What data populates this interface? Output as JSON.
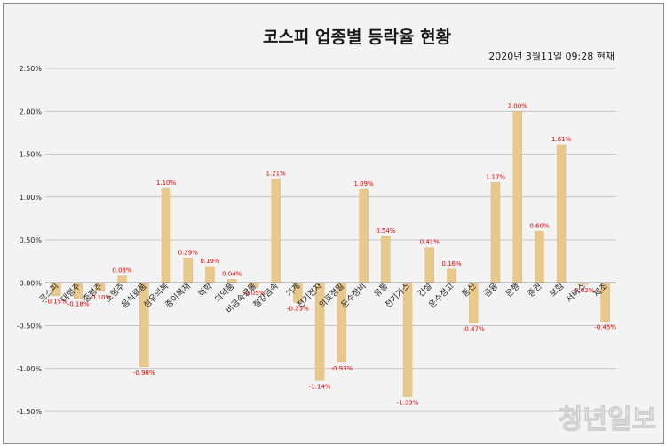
{
  "chart_data": {
    "type": "bar",
    "title": "코스피 업종별 등락율 현황",
    "subtitle": "2020년 3월11일  09:28  현재",
    "xlabel": "",
    "ylabel": "",
    "ylim": [
      -1.5,
      2.5
    ],
    "y_ticks": [
      "2.50%",
      "2.00%",
      "1.50%",
      "1.00%",
      "0.50%",
      "0.00%",
      "-0.50%",
      "-1.00%",
      "-1.50%"
    ],
    "y_tick_values": [
      2.5,
      2.0,
      1.5,
      1.0,
      0.5,
      0.0,
      -0.5,
      -1.0,
      -1.5
    ],
    "grid": true,
    "categories": [
      "코스피",
      "대형주",
      "중형주",
      "소형주",
      "음식료품",
      "섬유의복",
      "종이목재",
      "화학",
      "의약품",
      "비금속광물",
      "철강금속",
      "기계",
      "전기전자",
      "의료정밀",
      "운수장비",
      "유통",
      "전기가스",
      "건설",
      "운수창고",
      "통신",
      "금융",
      "은행",
      "증권",
      "보험",
      "서비스",
      "제조"
    ],
    "values": [
      -0.15,
      -0.18,
      -0.1,
      0.08,
      -0.98,
      1.1,
      0.29,
      0.19,
      0.04,
      -0.05,
      1.21,
      -0.23,
      -1.14,
      -0.93,
      1.09,
      0.54,
      -1.33,
      0.41,
      0.16,
      -0.47,
      1.17,
      2.0,
      0.6,
      1.61,
      -0.02,
      -0.45
    ],
    "labels": [
      "-0.15%",
      "-0.18%",
      "-0.10%",
      "0.08%",
      "-0.98%",
      "1.10%",
      "0.29%",
      "0.19%",
      "0.04%",
      "-0.05%",
      "1.21%",
      "-0.23%",
      "-1.14%",
      "-0.93%",
      "1.09%",
      "0.54%",
      "-1.33%",
      "0.41%",
      "0.16%",
      "-0.47%",
      "1.17%",
      "2.00%",
      "0.60%",
      "1.61%",
      "-0.02%",
      "-0.45%"
    ],
    "bar_color": "#e8c98b",
    "label_color": "#e60000"
  },
  "watermark": "청년일보"
}
